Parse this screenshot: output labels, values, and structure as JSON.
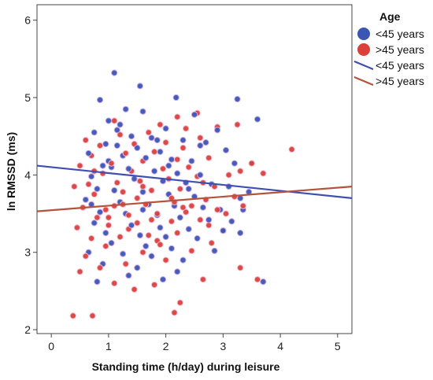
{
  "chart_data": {
    "type": "scatter",
    "xlabel": "Standing time (h/day) during leisure",
    "ylabel": "ln RMSSD (ms)",
    "xlim": [
      -0.25,
      5.25
    ],
    "ylim": [
      1.95,
      6.2
    ],
    "xticks": [
      "0",
      "1",
      "2",
      "3",
      "4",
      "5"
    ],
    "yticks": [
      "2",
      "3",
      "4",
      "5",
      "6"
    ],
    "grid": false,
    "legend_title": "Age",
    "legend_position": "right",
    "series": [
      {
        "name": "<45 years",
        "color": "#3a55b4",
        "marker": "circle",
        "points": [
          [
            1.1,
            5.32
          ],
          [
            1.55,
            5.15
          ],
          [
            2.18,
            5.0
          ],
          [
            3.25,
            4.98
          ],
          [
            0.85,
            4.97
          ],
          [
            1.3,
            4.85
          ],
          [
            1.6,
            4.82
          ],
          [
            2.5,
            4.78
          ],
          [
            3.6,
            4.72
          ],
          [
            1.0,
            4.7
          ],
          [
            1.2,
            4.65
          ],
          [
            2.0,
            4.6
          ],
          [
            2.9,
            4.58
          ],
          [
            0.75,
            4.55
          ],
          [
            1.4,
            4.5
          ],
          [
            1.75,
            4.48
          ],
          [
            2.3,
            4.45
          ],
          [
            2.7,
            4.42
          ],
          [
            0.95,
            4.4
          ],
          [
            1.15,
            4.38
          ],
          [
            1.5,
            4.35
          ],
          [
            1.9,
            4.3
          ],
          [
            3.05,
            4.32
          ],
          [
            0.65,
            4.28
          ],
          [
            1.25,
            4.25
          ],
          [
            1.65,
            4.22
          ],
          [
            2.1,
            4.2
          ],
          [
            2.45,
            4.18
          ],
          [
            3.2,
            4.15
          ],
          [
            0.9,
            4.12
          ],
          [
            1.05,
            4.1
          ],
          [
            1.35,
            4.08
          ],
          [
            1.8,
            4.05
          ],
          [
            2.2,
            4.02
          ],
          [
            2.6,
            4.0
          ],
          [
            3.5,
            4.15
          ],
          [
            0.7,
            3.98
          ],
          [
            1.45,
            3.95
          ],
          [
            1.95,
            3.92
          ],
          [
            2.35,
            3.9
          ],
          [
            2.8,
            3.88
          ],
          [
            3.1,
            3.85
          ],
          [
            0.8,
            3.82
          ],
          [
            1.1,
            3.8
          ],
          [
            1.6,
            3.78
          ],
          [
            2.05,
            3.75
          ],
          [
            2.5,
            3.72
          ],
          [
            3.3,
            3.7
          ],
          [
            0.6,
            3.68
          ],
          [
            1.2,
            3.65
          ],
          [
            1.7,
            3.62
          ],
          [
            2.15,
            3.6
          ],
          [
            2.65,
            3.58
          ],
          [
            2.95,
            3.55
          ],
          [
            0.85,
            3.52
          ],
          [
            1.3,
            3.5
          ],
          [
            1.85,
            3.48
          ],
          [
            2.25,
            3.45
          ],
          [
            2.75,
            3.42
          ],
          [
            3.15,
            3.4
          ],
          [
            0.75,
            3.38
          ],
          [
            1.4,
            3.35
          ],
          [
            1.9,
            3.32
          ],
          [
            2.4,
            3.3
          ],
          [
            3.0,
            3.28
          ],
          [
            0.95,
            3.25
          ],
          [
            1.55,
            3.22
          ],
          [
            2.0,
            3.2
          ],
          [
            2.55,
            3.18
          ],
          [
            3.3,
            3.25
          ],
          [
            1.05,
            3.12
          ],
          [
            1.65,
            3.08
          ],
          [
            2.1,
            3.05
          ],
          [
            2.85,
            3.02
          ],
          [
            0.65,
            3.0
          ],
          [
            1.25,
            2.98
          ],
          [
            1.75,
            2.95
          ],
          [
            2.3,
            2.9
          ],
          [
            0.9,
            2.85
          ],
          [
            1.5,
            2.8
          ],
          [
            2.2,
            2.75
          ],
          [
            3.7,
            2.62
          ],
          [
            1.35,
            2.7
          ],
          [
            1.95,
            2.65
          ],
          [
            0.8,
            2.62
          ],
          [
            3.35,
            3.55
          ],
          [
            2.6,
            4.38
          ],
          [
            1.0,
            4.18
          ],
          [
            1.85,
            4.45
          ],
          [
            0.7,
            3.62
          ],
          [
            1.15,
            4.58
          ],
          [
            2.4,
            3.82
          ],
          [
            3.45,
            3.78
          ],
          [
            1.6,
            3.55
          ],
          [
            2.05,
            4.12
          ]
        ]
      },
      {
        "name": ">45 years",
        "color": "#d9413a",
        "marker": "circle",
        "points": [
          [
            0.38,
            2.18
          ],
          [
            0.72,
            2.18
          ],
          [
            2.15,
            2.22
          ],
          [
            2.25,
            2.35
          ],
          [
            1.45,
            2.52
          ],
          [
            2.65,
            2.65
          ],
          [
            1.1,
            2.6
          ],
          [
            0.5,
            2.75
          ],
          [
            1.8,
            2.58
          ],
          [
            3.6,
            2.65
          ],
          [
            0.85,
            2.8
          ],
          [
            1.3,
            2.85
          ],
          [
            2.0,
            2.9
          ],
          [
            3.3,
            2.8
          ],
          [
            0.6,
            2.95
          ],
          [
            1.6,
            3.0
          ],
          [
            2.45,
            3.02
          ],
          [
            0.95,
            3.08
          ],
          [
            1.9,
            3.1
          ],
          [
            2.8,
            3.12
          ],
          [
            0.7,
            3.18
          ],
          [
            1.2,
            3.2
          ],
          [
            1.7,
            3.22
          ],
          [
            2.2,
            3.25
          ],
          [
            3.0,
            3.28
          ],
          [
            0.45,
            3.32
          ],
          [
            1.0,
            3.35
          ],
          [
            1.5,
            3.38
          ],
          [
            2.1,
            3.4
          ],
          [
            2.6,
            3.42
          ],
          [
            0.8,
            3.45
          ],
          [
            1.35,
            3.48
          ],
          [
            1.85,
            3.5
          ],
          [
            2.35,
            3.52
          ],
          [
            2.9,
            3.55
          ],
          [
            0.55,
            3.58
          ],
          [
            1.1,
            3.6
          ],
          [
            1.65,
            3.62
          ],
          [
            2.15,
            3.65
          ],
          [
            2.7,
            3.68
          ],
          [
            3.2,
            3.72
          ],
          [
            0.75,
            3.75
          ],
          [
            1.25,
            3.78
          ],
          [
            1.75,
            3.8
          ],
          [
            2.25,
            3.82
          ],
          [
            2.85,
            3.85
          ],
          [
            0.65,
            3.88
          ],
          [
            1.15,
            3.9
          ],
          [
            1.55,
            3.92
          ],
          [
            2.05,
            3.95
          ],
          [
            2.55,
            3.98
          ],
          [
            3.1,
            4.0
          ],
          [
            0.9,
            4.02
          ],
          [
            1.4,
            4.05
          ],
          [
            1.95,
            4.08
          ],
          [
            2.4,
            4.1
          ],
          [
            0.5,
            4.12
          ],
          [
            1.05,
            4.15
          ],
          [
            1.6,
            4.18
          ],
          [
            2.2,
            4.2
          ],
          [
            2.75,
            4.22
          ],
          [
            0.7,
            4.25
          ],
          [
            1.3,
            4.28
          ],
          [
            1.8,
            4.3
          ],
          [
            2.3,
            4.35
          ],
          [
            0.85,
            4.38
          ],
          [
            1.45,
            4.4
          ],
          [
            2.0,
            4.42
          ],
          [
            2.6,
            4.48
          ],
          [
            1.2,
            4.52
          ],
          [
            1.7,
            4.55
          ],
          [
            2.35,
            4.6
          ],
          [
            0.6,
            4.45
          ],
          [
            1.9,
            4.65
          ],
          [
            2.55,
            4.8
          ],
          [
            2.9,
            4.62
          ],
          [
            3.25,
            4.65
          ],
          [
            1.1,
            4.7
          ],
          [
            2.2,
            4.75
          ],
          [
            3.5,
            4.15
          ],
          [
            3.7,
            4.02
          ],
          [
            4.2,
            4.33
          ],
          [
            1.5,
            3.7
          ],
          [
            0.95,
            3.55
          ],
          [
            2.45,
            3.6
          ],
          [
            1.35,
            3.3
          ],
          [
            1.85,
            3.15
          ],
          [
            2.75,
            3.35
          ],
          [
            0.4,
            3.85
          ],
          [
            3.35,
            3.6
          ],
          [
            1.0,
            3.45
          ],
          [
            1.6,
            3.85
          ],
          [
            2.1,
            3.7
          ],
          [
            2.65,
            3.9
          ],
          [
            3.05,
            3.5
          ],
          [
            0.75,
            4.05
          ],
          [
            1.25,
            3.62
          ],
          [
            1.75,
            3.42
          ],
          [
            2.3,
            3.58
          ],
          [
            3.3,
            4.05
          ]
        ]
      }
    ],
    "fit_lines": [
      {
        "name": "<45 years",
        "color": "#3f4fb0",
        "x": [
          -0.25,
          5.25
        ],
        "y": [
          4.12,
          3.7
        ]
      },
      {
        "name": ">45 years",
        "color": "#b4523a",
        "x": [
          -0.25,
          5.25
        ],
        "y": [
          3.53,
          3.85
        ]
      }
    ]
  }
}
